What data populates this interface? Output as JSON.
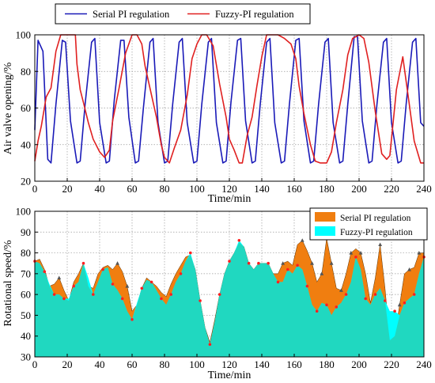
{
  "chart_data": [
    {
      "type": "line",
      "xlabel": "Time/min",
      "ylabel": "Air valve opening/%",
      "xlim": [
        0,
        240
      ],
      "ylim": [
        20,
        100
      ],
      "xticks": [
        0,
        20,
        40,
        60,
        80,
        100,
        120,
        140,
        160,
        180,
        200,
        220,
        240
      ],
      "yticks": [
        20,
        40,
        60,
        80,
        100
      ],
      "grid": true,
      "legend_position": "top",
      "series": [
        {
          "name": "Serial PI regulation",
          "color": "#1a1ab8",
          "x": [
            0,
            2,
            5,
            8,
            10,
            13,
            17,
            19,
            22,
            26,
            28,
            31,
            35,
            37,
            40,
            44,
            46,
            49,
            53,
            55,
            58,
            62,
            64,
            67,
            71,
            73,
            76,
            80,
            82,
            85,
            89,
            91,
            94,
            98,
            100,
            103,
            107,
            109,
            112,
            116,
            118,
            121,
            125,
            127,
            130,
            134,
            136,
            139,
            143,
            145,
            148,
            152,
            154,
            157,
            161,
            163,
            166,
            170,
            172,
            175,
            179,
            181,
            184,
            188,
            190,
            193,
            197,
            199,
            202,
            206,
            208,
            211,
            215,
            217,
            220,
            224,
            226,
            229,
            233,
            235,
            238,
            240
          ],
          "values": [
            48,
            97,
            91,
            32,
            30,
            62,
            97,
            96,
            53,
            30,
            31,
            62,
            96,
            98,
            52,
            30,
            31,
            64,
            97,
            97,
            55,
            30,
            31,
            60,
            96,
            98,
            52,
            30,
            31,
            62,
            96,
            98,
            52,
            30,
            31,
            62,
            96,
            98,
            52,
            30,
            31,
            63,
            97,
            98,
            53,
            30,
            31,
            62,
            96,
            98,
            52,
            30,
            31,
            62,
            97,
            98,
            53,
            30,
            31,
            62,
            96,
            98,
            52,
            30,
            31,
            62,
            99,
            99,
            53,
            30,
            31,
            62,
            96,
            98,
            52,
            30,
            31,
            62,
            96,
            98,
            52,
            50
          ]
        },
        {
          "name": "Fuzzy-PI regulation",
          "color": "#e02020",
          "x": [
            0,
            2,
            4,
            7,
            10,
            13,
            16,
            18,
            21,
            25,
            26,
            28,
            30,
            33,
            36,
            40,
            43,
            46,
            48,
            52,
            56,
            60,
            63,
            66,
            68,
            72,
            75,
            78,
            80,
            83,
            86,
            90,
            94,
            97,
            100,
            103,
            106,
            110,
            114,
            118,
            120,
            123,
            126,
            128,
            131,
            134,
            137,
            140,
            143,
            146,
            150,
            154,
            158,
            161,
            163,
            166,
            170,
            173,
            176,
            180,
            183,
            186,
            190,
            193,
            196,
            200,
            203,
            206,
            210,
            214,
            217,
            219,
            223,
            227,
            231,
            234,
            238,
            240
          ],
          "values": [
            31,
            42,
            50,
            66,
            71,
            91,
            100,
            100,
            100,
            100,
            84,
            70,
            63,
            52,
            43,
            36,
            33,
            37,
            53,
            71,
            90,
            100,
            100,
            95,
            83,
            67,
            55,
            40,
            33,
            30,
            38,
            48,
            67,
            87,
            95,
            100,
            100,
            94,
            73,
            55,
            43,
            37,
            30,
            30,
            45,
            55,
            72,
            88,
            100,
            100,
            100,
            98,
            95,
            87,
            72,
            57,
            40,
            31,
            30,
            30,
            36,
            52,
            70,
            89,
            98,
            100,
            98,
            85,
            58,
            35,
            32,
            34,
            70,
            88,
            62,
            42,
            30,
            30
          ]
        }
      ]
    },
    {
      "type": "area",
      "xlabel": "Time/min",
      "ylabel": "Rotational speed/%",
      "xlim": [
        0,
        240
      ],
      "ylim": [
        30,
        100
      ],
      "xticks": [
        0,
        20,
        40,
        60,
        80,
        100,
        120,
        140,
        160,
        180,
        200,
        220,
        240
      ],
      "yticks": [
        30,
        40,
        50,
        60,
        70,
        80,
        90,
        100
      ],
      "grid": true,
      "legend_position": "top-right",
      "series": [
        {
          "name": "Serial PI regulation",
          "color": "#f07e10",
          "x": [
            0,
            3,
            6,
            9,
            12,
            15,
            18,
            21,
            24,
            27,
            30,
            33,
            36,
            39,
            42,
            45,
            48,
            51,
            54,
            57,
            60,
            63,
            66,
            69,
            72,
            75,
            78,
            81,
            84,
            87,
            90,
            93,
            96,
            99,
            102,
            105,
            108,
            111,
            114,
            117,
            120,
            123,
            126,
            129,
            132,
            135,
            138,
            141,
            144,
            147,
            150,
            153,
            156,
            159,
            162,
            165,
            168,
            171,
            174,
            177,
            180,
            183,
            186,
            189,
            192,
            195,
            198,
            201,
            204,
            207,
            210,
            213,
            216,
            219,
            222,
            225,
            228,
            231,
            234,
            237,
            240
          ],
          "values": [
            76,
            77,
            72,
            64,
            65,
            68,
            62,
            57,
            66,
            70,
            75,
            64,
            63,
            70,
            73,
            74,
            72,
            75,
            71,
            64,
            52,
            55,
            63,
            68,
            66,
            64,
            61,
            59,
            65,
            70,
            74,
            78,
            79,
            72,
            57,
            44,
            37,
            48,
            60,
            70,
            76,
            80,
            85,
            83,
            75,
            72,
            75,
            75,
            75,
            70,
            70,
            75,
            76,
            74,
            84,
            86,
            81,
            75,
            66,
            70,
            87,
            75,
            63,
            62,
            70,
            80,
            82,
            80,
            70,
            56,
            68,
            84,
            63,
            38,
            40,
            55,
            70,
            72,
            73,
            80,
            80
          ]
        },
        {
          "name": "Fuzzy-PI regulation",
          "color": "#00ffff",
          "x": [
            0,
            3,
            6,
            9,
            12,
            15,
            18,
            21,
            24,
            27,
            30,
            33,
            36,
            39,
            42,
            45,
            48,
            51,
            54,
            57,
            60,
            63,
            66,
            69,
            72,
            75,
            78,
            81,
            84,
            87,
            90,
            93,
            96,
            99,
            102,
            105,
            108,
            111,
            114,
            117,
            120,
            123,
            126,
            129,
            132,
            135,
            138,
            141,
            144,
            147,
            150,
            153,
            156,
            159,
            162,
            165,
            168,
            171,
            174,
            177,
            180,
            183,
            186,
            189,
            192,
            195,
            198,
            201,
            204,
            207,
            210,
            213,
            216,
            219,
            222,
            225,
            228,
            231,
            234,
            237,
            240
          ],
          "values": [
            76,
            75,
            71,
            65,
            60,
            60,
            58,
            58,
            64,
            66,
            75,
            68,
            60,
            66,
            72,
            73,
            65,
            62,
            58,
            52,
            48,
            56,
            63,
            67,
            66,
            62,
            58,
            55,
            60,
            66,
            70,
            76,
            80,
            72,
            57,
            44,
            36,
            47,
            60,
            70,
            76,
            80,
            86,
            83,
            75,
            72,
            75,
            75,
            75,
            70,
            66,
            66,
            72,
            70,
            74,
            72,
            64,
            55,
            52,
            56,
            55,
            50,
            54,
            56,
            60,
            66,
            78,
            72,
            58,
            55,
            60,
            63,
            57,
            52,
            52,
            50,
            56,
            58,
            60,
            70,
            78
          ]
        }
      ]
    }
  ],
  "legend_top": [
    "Serial PI regulation",
    "Fuzzy-PI regulation"
  ],
  "legend_bottom": [
    "Serial PI regulation",
    "Fuzzy-PI regulation"
  ],
  "marker_colors": {
    "serial_marker": "#555555",
    "fuzzy_marker": "#ff2020",
    "overlap_fill": "#20d8c0"
  }
}
